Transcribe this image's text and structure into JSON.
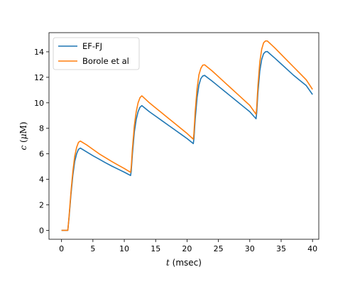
{
  "chart_data": {
    "type": "line",
    "title": "",
    "xlabel": {
      "var": "t",
      "unit": " (msec)"
    },
    "ylabel": {
      "var": "c",
      "unit_open": " (",
      "mu": "μ",
      "unit": "M",
      "unit_close": ")"
    },
    "xlim": [
      -2,
      41
    ],
    "ylim": [
      -0.7,
      15.5
    ],
    "xticks": [
      0,
      5,
      10,
      15,
      20,
      25,
      30,
      35,
      40
    ],
    "yticks": [
      0,
      2,
      4,
      6,
      8,
      10,
      12,
      14
    ],
    "grid": false,
    "legend_position": "top-left",
    "series": [
      {
        "name": "EF-FJ",
        "color": "#1f77b4",
        "points": [
          [
            0,
            0
          ],
          [
            1,
            0
          ],
          [
            1.2,
            1.0
          ],
          [
            1.5,
            2.8
          ],
          [
            1.8,
            4.3
          ],
          [
            2.1,
            5.4
          ],
          [
            2.4,
            6.0
          ],
          [
            2.7,
            6.35
          ],
          [
            3.0,
            6.45
          ],
          [
            4,
            6.15
          ],
          [
            5,
            5.85
          ],
          [
            6,
            5.58
          ],
          [
            7,
            5.3
          ],
          [
            8,
            5.04
          ],
          [
            9,
            4.8
          ],
          [
            10,
            4.56
          ],
          [
            11,
            4.3
          ],
          [
            11.1,
            4.6
          ],
          [
            11.3,
            6.0
          ],
          [
            11.6,
            7.7
          ],
          [
            11.9,
            8.7
          ],
          [
            12.2,
            9.3
          ],
          [
            12.5,
            9.65
          ],
          [
            12.8,
            9.78
          ],
          [
            14,
            9.3
          ],
          [
            15,
            8.95
          ],
          [
            16,
            8.6
          ],
          [
            17,
            8.25
          ],
          [
            18,
            7.9
          ],
          [
            19,
            7.55
          ],
          [
            20,
            7.2
          ],
          [
            21,
            6.8
          ],
          [
            21.1,
            7.2
          ],
          [
            21.3,
            8.7
          ],
          [
            21.6,
            10.4
          ],
          [
            21.9,
            11.4
          ],
          [
            22.2,
            11.9
          ],
          [
            22.5,
            12.1
          ],
          [
            22.8,
            12.15
          ],
          [
            24,
            11.7
          ],
          [
            25,
            11.3
          ],
          [
            26,
            10.9
          ],
          [
            27,
            10.5
          ],
          [
            28,
            10.1
          ],
          [
            29,
            9.7
          ],
          [
            30,
            9.3
          ],
          [
            31,
            8.75
          ],
          [
            31.1,
            9.2
          ],
          [
            31.3,
            10.8
          ],
          [
            31.6,
            12.5
          ],
          [
            31.9,
            13.4
          ],
          [
            32.2,
            13.85
          ],
          [
            32.5,
            14.0
          ],
          [
            32.8,
            14.02
          ],
          [
            34,
            13.5
          ],
          [
            35,
            13.05
          ],
          [
            36,
            12.6
          ],
          [
            37,
            12.15
          ],
          [
            38,
            11.75
          ],
          [
            39,
            11.35
          ],
          [
            40,
            10.65
          ]
        ]
      },
      {
        "name": "Borole et al",
        "color": "#ff7f0e",
        "points": [
          [
            0,
            0
          ],
          [
            1,
            0
          ],
          [
            1.2,
            1.1
          ],
          [
            1.5,
            3.0
          ],
          [
            1.8,
            4.6
          ],
          [
            2.1,
            5.8
          ],
          [
            2.4,
            6.5
          ],
          [
            2.7,
            6.9
          ],
          [
            3.0,
            7.0
          ],
          [
            4,
            6.7
          ],
          [
            5,
            6.35
          ],
          [
            6,
            6.0
          ],
          [
            7,
            5.7
          ],
          [
            8,
            5.4
          ],
          [
            9,
            5.12
          ],
          [
            10,
            4.85
          ],
          [
            11,
            4.55
          ],
          [
            11.1,
            4.9
          ],
          [
            11.3,
            6.4
          ],
          [
            11.6,
            8.2
          ],
          [
            11.9,
            9.3
          ],
          [
            12.2,
            10.0
          ],
          [
            12.5,
            10.4
          ],
          [
            12.8,
            10.55
          ],
          [
            14,
            10.0
          ],
          [
            15,
            9.6
          ],
          [
            16,
            9.2
          ],
          [
            17,
            8.8
          ],
          [
            18,
            8.4
          ],
          [
            19,
            8.0
          ],
          [
            20,
            7.6
          ],
          [
            21,
            7.15
          ],
          [
            21.1,
            7.6
          ],
          [
            21.3,
            9.3
          ],
          [
            21.6,
            11.1
          ],
          [
            21.9,
            12.2
          ],
          [
            22.2,
            12.7
          ],
          [
            22.5,
            12.95
          ],
          [
            22.8,
            12.98
          ],
          [
            24,
            12.5
          ],
          [
            25,
            12.05
          ],
          [
            26,
            11.6
          ],
          [
            27,
            11.15
          ],
          [
            28,
            10.7
          ],
          [
            29,
            10.25
          ],
          [
            30,
            9.8
          ],
          [
            31,
            9.1
          ],
          [
            31.1,
            9.6
          ],
          [
            31.3,
            11.3
          ],
          [
            31.6,
            13.2
          ],
          [
            31.9,
            14.2
          ],
          [
            32.2,
            14.7
          ],
          [
            32.5,
            14.85
          ],
          [
            32.8,
            14.85
          ],
          [
            34,
            14.3
          ],
          [
            35,
            13.8
          ],
          [
            36,
            13.3
          ],
          [
            37,
            12.8
          ],
          [
            38,
            12.3
          ],
          [
            39,
            11.8
          ],
          [
            40,
            11.05
          ]
        ]
      }
    ]
  }
}
